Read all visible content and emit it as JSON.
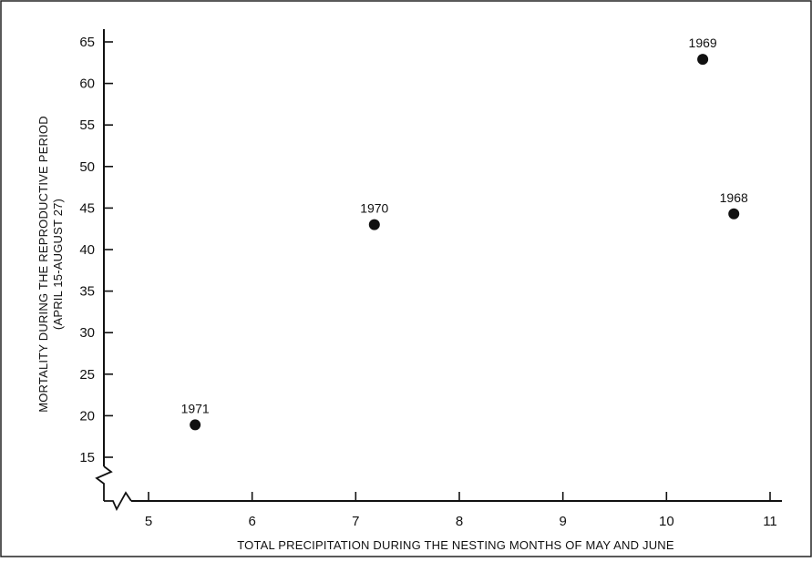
{
  "chart_data": {
    "type": "scatter",
    "xlabel": "TOTAL PRECIPITATION DURING THE NESTING MONTHS OF MAY AND JUNE",
    "ylabel_lines": [
      "MORTALITY DURING THE REPRODUCTIVE PERIOD",
      "(APRIL 15-AUGUST 27)"
    ],
    "xlim": [
      4.7,
      11.1
    ],
    "ylim": [
      15,
      65
    ],
    "x_ticks": [
      "5",
      "6",
      "7",
      "8",
      "9",
      "10",
      "11"
    ],
    "y_ticks": [
      "15",
      "20",
      "25",
      "30",
      "35",
      "40",
      "45",
      "50",
      "55",
      "60",
      "65"
    ],
    "axis_breaks": {
      "x": true,
      "y": true
    },
    "grid": false,
    "legend": "none",
    "points": [
      {
        "label": "1971",
        "x": 5.45,
        "y": 18.9
      },
      {
        "label": "1970",
        "x": 7.18,
        "y": 43.0
      },
      {
        "label": "1969",
        "x": 10.35,
        "y": 62.9
      },
      {
        "label": "1968",
        "x": 10.65,
        "y": 44.3
      }
    ],
    "marker_color": "#111111"
  }
}
